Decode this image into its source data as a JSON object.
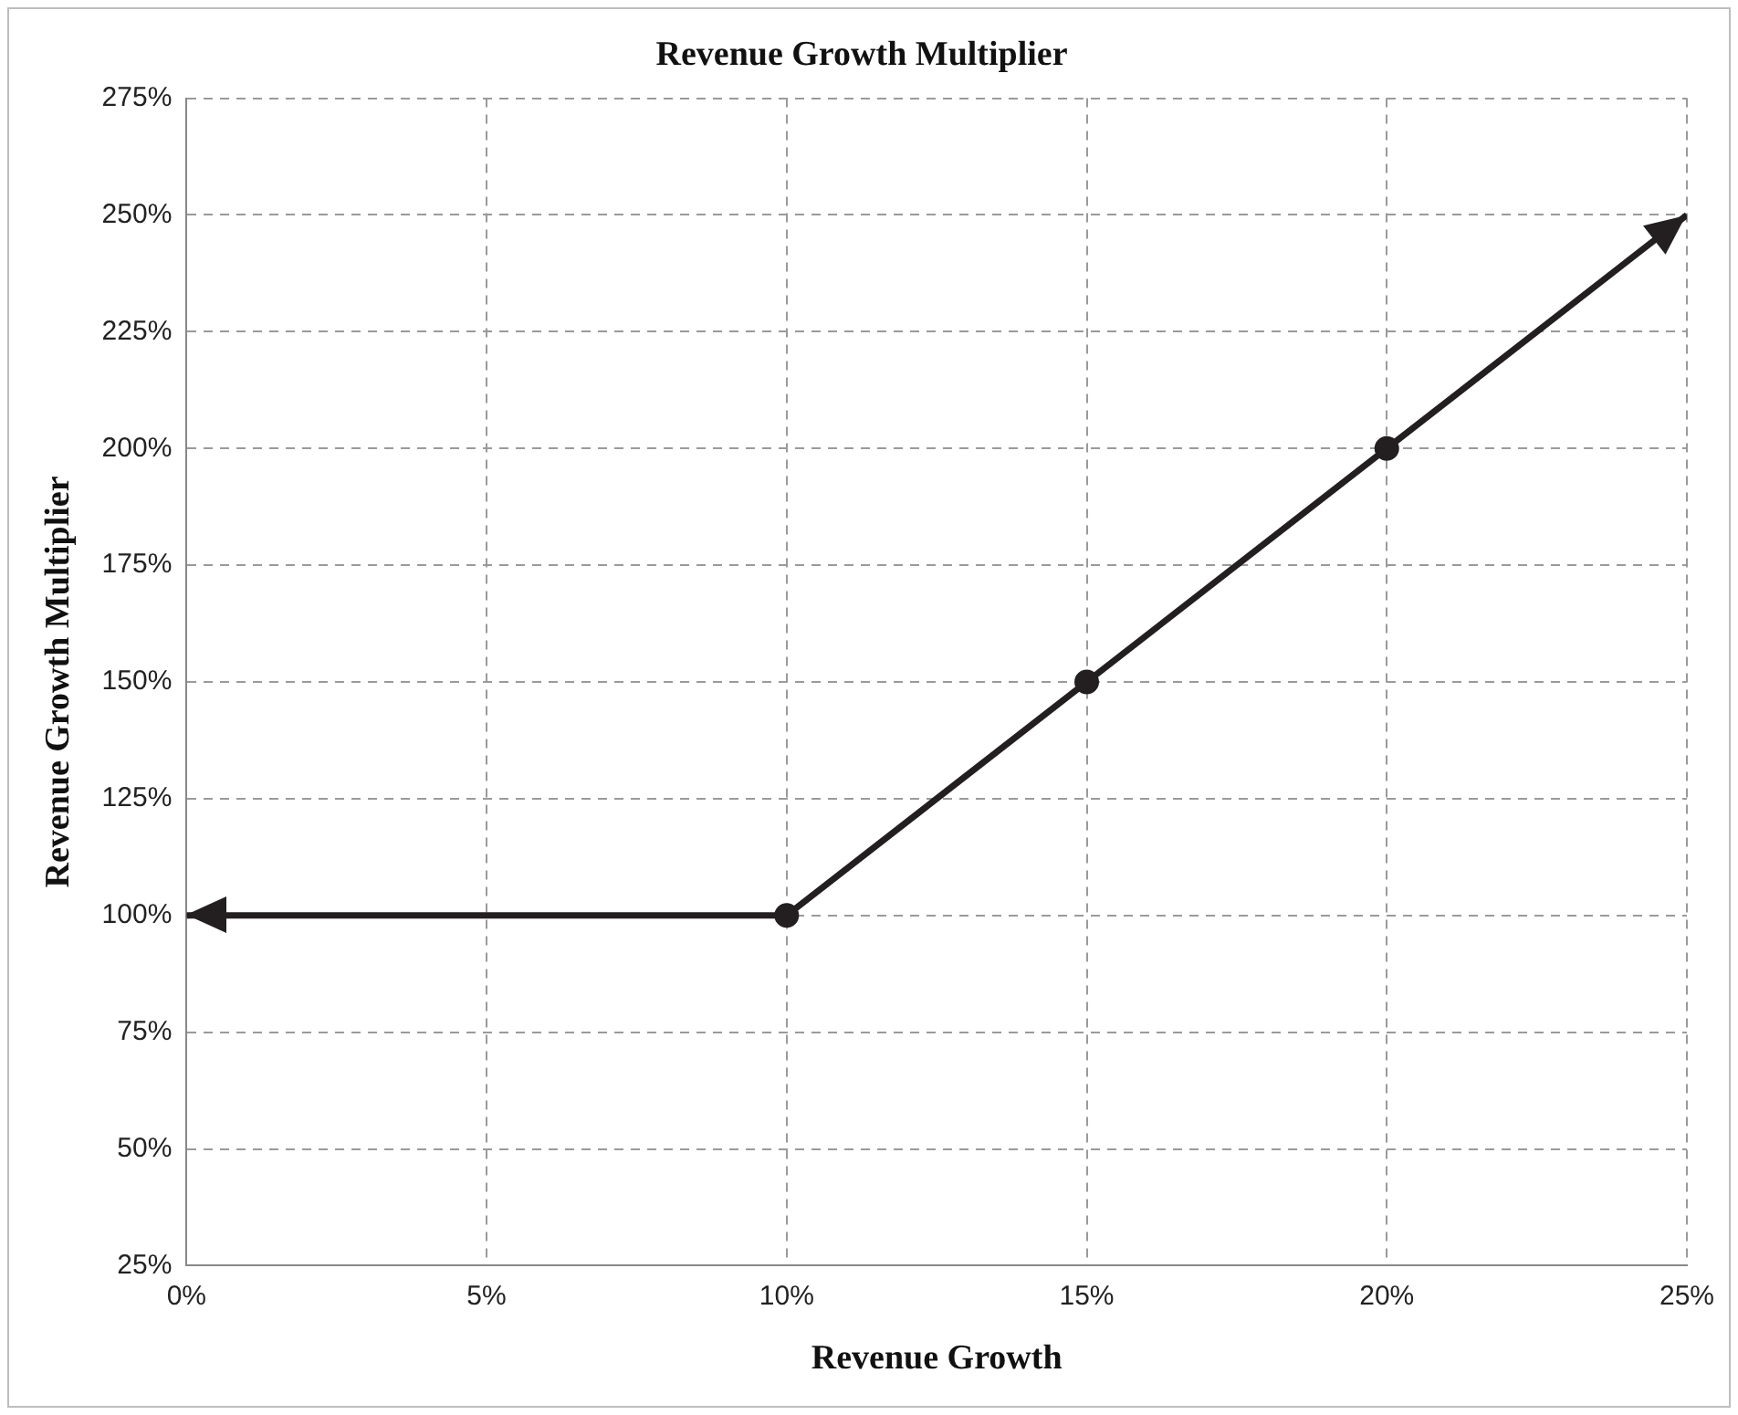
{
  "chart_data": {
    "type": "line",
    "title": "Revenue Growth Multiplier",
    "xlabel": "Revenue Growth",
    "ylabel": "Revenue Growth Multiplier",
    "x": [
      0,
      10,
      15,
      20,
      25
    ],
    "series": [
      {
        "color": "#231f20",
        "values": [
          100,
          100,
          150,
          200,
          250
        ]
      }
    ],
    "xlim": [
      0,
      25
    ],
    "xticks": [
      {
        "value": 0,
        "label": "0%"
      },
      {
        "value": 5,
        "label": "5%"
      },
      {
        "value": 10,
        "label": "10%"
      },
      {
        "value": 15,
        "label": "15%"
      },
      {
        "value": 20,
        "label": "20%"
      },
      {
        "value": 25,
        "label": "25%"
      }
    ],
    "ylim": [
      25,
      275
    ],
    "yticks": [
      {
        "value": 25,
        "label": "25%"
      },
      {
        "value": 50,
        "label": "50%"
      },
      {
        "value": 75,
        "label": "75%"
      },
      {
        "value": 100,
        "label": "100%"
      },
      {
        "value": 125,
        "label": "125%"
      },
      {
        "value": 150,
        "label": "150%"
      },
      {
        "value": 175,
        "label": "175%"
      },
      {
        "value": 200,
        "label": "200%"
      },
      {
        "value": 225,
        "label": "225%"
      },
      {
        "value": 250,
        "label": "250%"
      },
      {
        "value": 275,
        "label": "275%"
      }
    ],
    "grid": true,
    "legend": false,
    "marker": "circle",
    "line_style": "solid"
  }
}
